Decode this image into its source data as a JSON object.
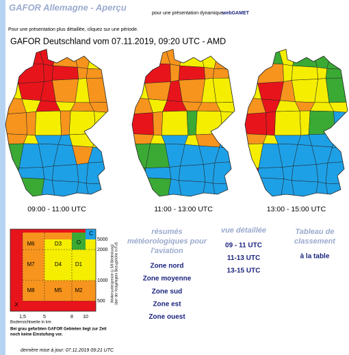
{
  "header": {
    "title": "GAFOR Allemagne - Aperçu",
    "dynamic_prefix": "pour une présentation dynamique:",
    "dynamic_link": "webGAMET",
    "instruction": "Pour une présentation plus détaillée, cliquez sur une période."
  },
  "map_title": "GAFOR Deutschland vom 07.11.2019, 09:20 UTC - AMD",
  "maps": [
    {
      "caption": "09:00 - 11:00 UTC"
    },
    {
      "caption": "11:00 - 13:00 UTC"
    },
    {
      "caption": "13:00 - 15:00 UTC"
    }
  ],
  "legend": {
    "cells": [
      "M6",
      "D3",
      "O",
      "C",
      "M7",
      "D4",
      "D1",
      "M8",
      "M5",
      "M2",
      "X"
    ],
    "y_labels": [
      "5000",
      "2000",
      "1000",
      "500"
    ],
    "x_labels": [
      "1,5",
      "5",
      "8",
      "10"
    ],
    "y_title": [
      "Wolkenuntergrenze (≥ 5/8 Bedeckung)",
      "über der festgelegten Bezugshöhe in Fuß"
    ],
    "x_title": "Bodensichtweite in km",
    "note": [
      "Bei grau gefarbten GAFOR Gebieten liegt zur Zeit",
      "noch keine Einstufung vor."
    ]
  },
  "summaries": {
    "heading": [
      "résumés",
      "météorologiques pour",
      "l'aviation"
    ],
    "links": [
      "Zone nord",
      "Zone moyenne",
      "Zone sud",
      "Zone est",
      "Zone ouest"
    ]
  },
  "detail": {
    "heading": "vue détaillée",
    "links": [
      "09 - 11 UTC",
      "11-13 UTC",
      "13-15 UTC"
    ]
  },
  "ranking": {
    "heading": [
      "Tableau de",
      "classement"
    ],
    "link": "à la table"
  },
  "footer": "dernière mise à jour: 07.11.2019 09:21 UTC"
}
